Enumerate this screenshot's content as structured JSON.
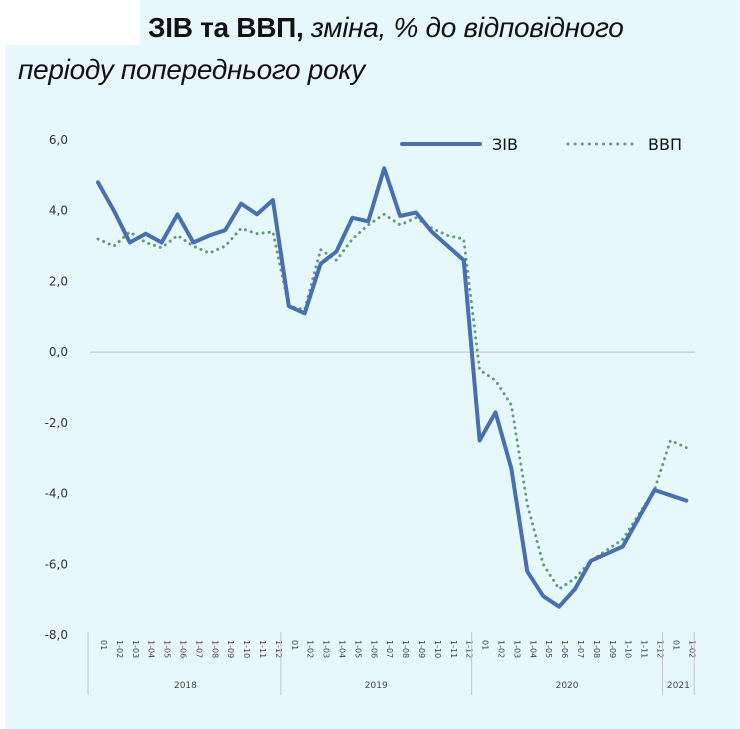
{
  "title": {
    "bold": "ЗІВ та ВВП,",
    "italic": " зміна, % до відповідного",
    "line2": "періоду попереднього року"
  },
  "legend": {
    "series1": "ЗІВ",
    "series2": "ВВП"
  },
  "colors": {
    "zib": "#4a6fb0",
    "vvp": "#6a9a7a",
    "background": "#e6f8fc",
    "zero_line": "#c8c8c8"
  },
  "chart_data": {
    "type": "line",
    "title": "ЗІВ та ВВП, зміна, % до відповідного періоду попереднього року",
    "xlabel": "",
    "ylabel": "",
    "ylim": [
      -8.0,
      6.0
    ],
    "yticks": [
      "6,0",
      "4,0",
      "2,0",
      "0,0",
      "-2,0",
      "-4,0",
      "-6,0",
      "-8,0"
    ],
    "grid": false,
    "legend_position": "top-right",
    "groups": [
      {
        "year": "2018",
        "labels": [
          "01",
          "1-02",
          "1-03",
          "1-04",
          "1-05",
          "1-06",
          "1-07",
          "1-08",
          "1-09",
          "1-10",
          "1-11",
          "1-12"
        ]
      },
      {
        "year": "2019",
        "labels": [
          "01",
          "1-02",
          "1-03",
          "1-04",
          "1-05",
          "1-06",
          "1-07",
          "1-08",
          "1-09",
          "1-10",
          "1-11",
          "1-12"
        ]
      },
      {
        "year": "2020",
        "labels": [
          "01",
          "1-02",
          "1-03",
          "1-04",
          "1-05",
          "1-06",
          "1-07",
          "1-08",
          "1-09",
          "1-10",
          "1-11",
          "1-12"
        ]
      },
      {
        "year": "2021",
        "labels": [
          "01",
          "1-02"
        ]
      }
    ],
    "series": [
      {
        "name": "ЗІВ",
        "style": "solid",
        "values": [
          4.8,
          4.0,
          3.1,
          3.35,
          3.1,
          3.9,
          3.1,
          3.3,
          3.45,
          4.2,
          3.9,
          4.3,
          1.3,
          1.1,
          2.5,
          2.85,
          3.8,
          3.7,
          5.2,
          3.85,
          3.95,
          3.4,
          3.0,
          2.6,
          -2.5,
          -1.7,
          -3.3,
          -6.2,
          -6.9,
          -7.2,
          -6.7,
          -5.9,
          -5.7,
          -5.5,
          -4.7,
          -3.9,
          -4.05,
          -4.2
        ]
      },
      {
        "name": "ВВП",
        "style": "dotted",
        "values": [
          3.2,
          3.0,
          3.4,
          3.1,
          2.95,
          3.3,
          3.0,
          2.8,
          3.0,
          3.5,
          3.35,
          3.4,
          1.3,
          1.2,
          2.9,
          2.6,
          3.2,
          3.6,
          3.9,
          3.6,
          3.8,
          3.5,
          3.3,
          3.2,
          -0.5,
          -0.8,
          -1.5,
          -4.3,
          -6.0,
          -6.7,
          -6.4,
          -5.9,
          -5.6,
          -5.3,
          -4.6,
          -3.9,
          -2.5,
          -2.7
        ]
      }
    ]
  }
}
